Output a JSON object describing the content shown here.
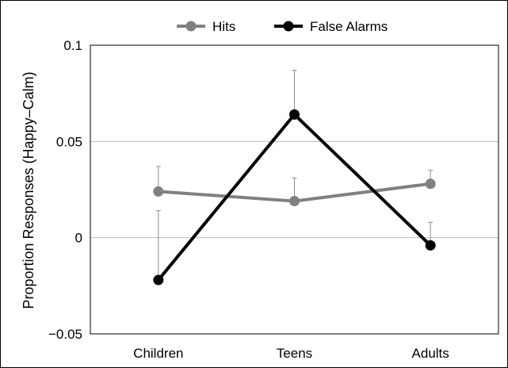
{
  "chart_data": {
    "type": "line",
    "categories": [
      "Children",
      "Teens",
      "Adults"
    ],
    "ylabel": "Proportion Responses (Happy–Calm)",
    "ylim": [
      -0.05,
      0.1
    ],
    "yticks": [
      {
        "value": 0.1,
        "label": "0.1"
      },
      {
        "value": 0.05,
        "label": "0.05"
      },
      {
        "value": 0,
        "label": "0"
      },
      {
        "value": -0.05,
        "label": "−0.05"
      }
    ],
    "grid": true,
    "legend_position": "top",
    "series": [
      {
        "name": "Hits",
        "color": "#808080",
        "values": [
          0.024,
          0.019,
          0.028
        ],
        "error_upper": [
          0.037,
          0.031,
          0.035
        ]
      },
      {
        "name": "False Alarms",
        "color": "#000000",
        "values": [
          -0.022,
          0.064,
          -0.004
        ],
        "error_upper": [
          0.014,
          0.087,
          0.008
        ]
      }
    ]
  }
}
